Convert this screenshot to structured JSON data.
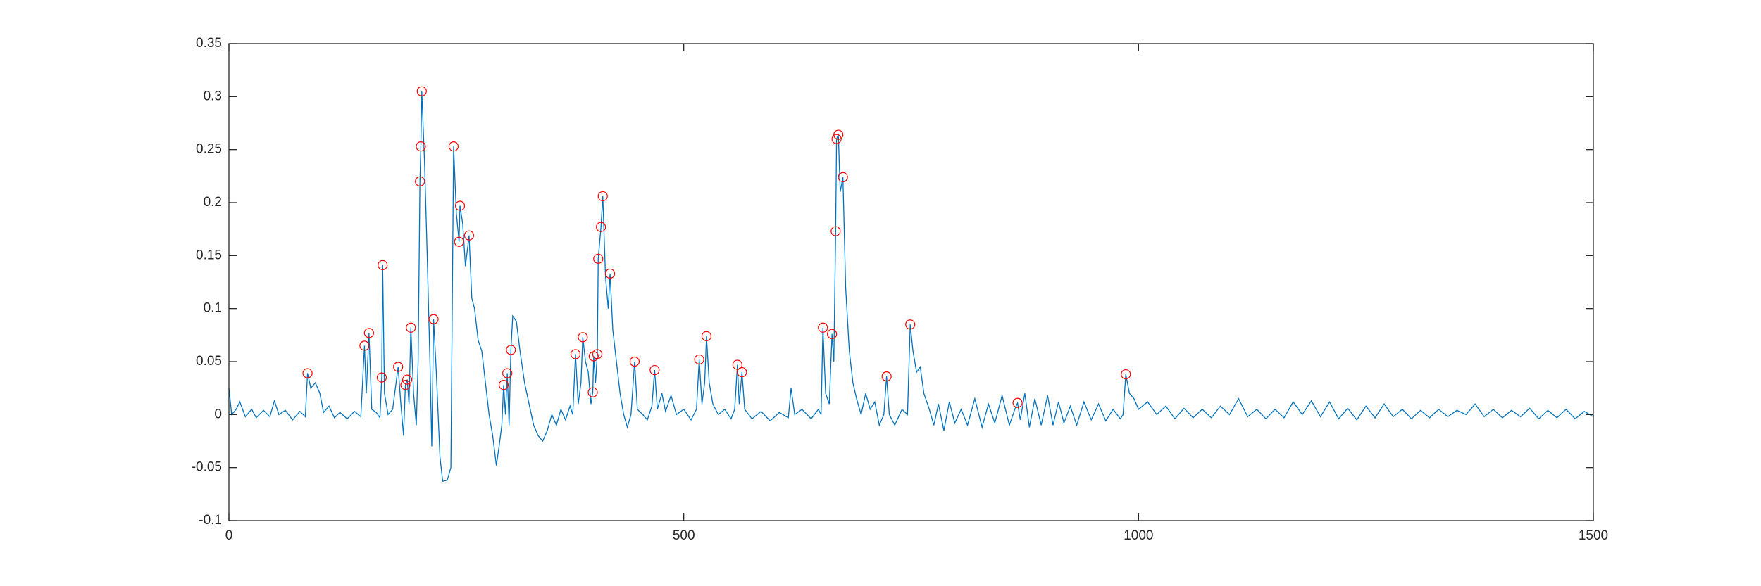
{
  "chart_data": {
    "type": "line",
    "xlim": [
      0,
      1500
    ],
    "xticks": [
      0,
      500,
      1000,
      1500
    ],
    "ylim": [
      -0.1,
      0.35
    ],
    "yticks": [
      -0.1,
      -0.05,
      0,
      0.05,
      0.1,
      0.15,
      0.2,
      0.25,
      0.3,
      0.35
    ],
    "box": true,
    "series": [
      {
        "style": "line",
        "color": "#0072bd",
        "x": [
          0,
          3,
          8,
          12,
          18,
          25,
          30,
          38,
          45,
          50,
          55,
          62,
          70,
          78,
          84,
          86.4,
          90,
          95,
          100,
          104,
          110,
          116,
          122,
          130,
          138,
          145,
          149,
          151,
          154,
          157,
          162,
          166,
          168,
          169,
          171,
          175,
          180,
          186,
          189,
          192,
          194,
          196,
          198,
          200,
          203,
          206,
          208,
          210,
          211,
          212,
          215,
          218,
          221,
          223,
          225,
          228,
          232,
          235,
          240,
          244,
          247,
          250,
          253,
          254,
          257,
          260,
          264,
          267,
          270,
          274,
          278,
          282,
          286,
          290,
          294,
          297,
          300,
          302,
          304,
          306,
          308,
          310,
          312,
          316,
          320,
          325,
          330,
          335,
          340,
          345,
          350,
          355,
          360,
          365,
          370,
          375,
          378,
          381,
          384,
          387,
          389,
          392,
          395,
          398,
          400,
          401,
          403,
          405,
          406,
          409,
          411,
          414,
          417,
          419,
          422,
          426,
          430,
          434,
          438,
          442,
          446,
          449,
          455,
          460,
          465,
          468,
          471,
          476,
          480,
          486,
          492,
          500,
          508,
          514,
          517,
          520,
          523,
          525,
          528,
          532,
          538,
          545,
          552,
          556,
          559,
          561,
          564,
          567,
          575,
          585,
          595,
          605,
          615,
          618,
          622,
          630,
          640,
          648,
          651,
          653,
          656,
          660,
          663,
          665,
          667,
          668,
          670,
          672,
          675,
          678,
          682,
          686,
          690,
          695,
          700,
          705,
          710,
          715,
          720,
          723,
          726,
          732,
          740,
          746,
          749,
          752,
          756,
          760,
          764,
          770,
          775,
          780,
          786,
          792,
          798,
          805,
          812,
          820,
          828,
          835,
          842,
          850,
          858,
          864,
          867,
          870,
          875,
          880,
          886,
          893,
          900,
          906,
          912,
          918,
          925,
          932,
          940,
          948,
          956,
          964,
          972,
          980,
          983,
          986,
          990,
          995,
          1000,
          1010,
          1020,
          1030,
          1040,
          1050,
          1060,
          1070,
          1080,
          1090,
          1100,
          1110,
          1120,
          1130,
          1140,
          1150,
          1160,
          1170,
          1180,
          1190,
          1200,
          1210,
          1220,
          1230,
          1240,
          1250,
          1260,
          1270,
          1280,
          1290,
          1300,
          1310,
          1320,
          1330,
          1340,
          1350,
          1360,
          1370,
          1380,
          1390,
          1400,
          1410,
          1420,
          1430,
          1440,
          1450,
          1460,
          1470,
          1480,
          1490,
          1500
        ],
        "values": [
          0.025,
          0,
          0.005,
          0.012,
          -0.002,
          0.005,
          -0.003,
          0.004,
          -0.002,
          0.013,
          0,
          0.004,
          -0.005,
          0.003,
          -0.002,
          0.039,
          0.025,
          0.03,
          0.02,
          0.002,
          0.008,
          -0.003,
          0.002,
          -0.004,
          0.003,
          -0.002,
          0.065,
          0.02,
          0.077,
          0.005,
          0.002,
          -0.003,
          0.035,
          0.141,
          0.02,
          0,
          0.005,
          0.045,
          0.01,
          -0.02,
          0.028,
          0.033,
          0.01,
          0.082,
          0.02,
          -0.01,
          0.05,
          0.22,
          0.253,
          0.305,
          0.24,
          0.15,
          0.05,
          -0.03,
          0.09,
          0.04,
          -0.04,
          -0.063,
          -0.062,
          -0.05,
          0.253,
          0.19,
          0.163,
          0.197,
          0.18,
          0.14,
          0.169,
          0.11,
          0.1,
          0.07,
          0.06,
          0.03,
          0,
          -0.02,
          -0.048,
          -0.03,
          -0.01,
          0.028,
          0,
          0.039,
          -0.01,
          0.061,
          0.093,
          0.088,
          0.06,
          0.03,
          0.01,
          -0.01,
          -0.02,
          -0.025,
          -0.015,
          0,
          -0.01,
          0.005,
          -0.005,
          0.008,
          0,
          0.057,
          0.01,
          0.03,
          0.073,
          0.05,
          0.04,
          0.01,
          0.021,
          0.055,
          0.03,
          0.057,
          0.147,
          0.177,
          0.206,
          0.13,
          0.1,
          0.133,
          0.08,
          0.05,
          0.02,
          0,
          -0.012,
          0,
          0.05,
          0.005,
          0,
          -0.005,
          0.008,
          0.042,
          0.005,
          0.02,
          0.003,
          0.018,
          0,
          0.005,
          -0.005,
          0.005,
          0.052,
          0.01,
          0.03,
          0.074,
          0.03,
          0.01,
          0,
          0.005,
          -0.004,
          0.005,
          0.047,
          0.01,
          0.04,
          0.005,
          -0.004,
          0.003,
          -0.006,
          0.002,
          -0.003,
          0.025,
          0,
          0.005,
          -0.004,
          0.005,
          0,
          0.082,
          0.02,
          0.01,
          0.076,
          0.05,
          0.173,
          0.26,
          0.264,
          0.21,
          0.224,
          0.12,
          0.06,
          0.03,
          0.015,
          0,
          0.02,
          0.005,
          0.012,
          -0.01,
          0,
          0.036,
          0,
          -0.01,
          0.005,
          0,
          0.085,
          0.06,
          0.04,
          0.045,
          0.02,
          0.005,
          -0.01,
          0.01,
          -0.015,
          0.012,
          -0.008,
          0.005,
          -0.01,
          0.015,
          -0.012,
          0.01,
          -0.008,
          0.018,
          -0.01,
          0.005,
          0.011,
          -0.005,
          0.02,
          -0.012,
          0.015,
          -0.01,
          0.018,
          -0.01,
          0.012,
          -0.008,
          0.008,
          -0.01,
          0.012,
          -0.005,
          0.01,
          -0.006,
          0.005,
          -0.004,
          0,
          0.038,
          0.02,
          0.015,
          0.005,
          0.012,
          0,
          0.008,
          -0.004,
          0.006,
          -0.003,
          0.005,
          -0.003,
          0.008,
          0,
          0.015,
          -0.002,
          0.005,
          -0.004,
          0.005,
          -0.003,
          0.012,
          0,
          0.013,
          -0.002,
          0.012,
          -0.004,
          0.006,
          -0.005,
          0.008,
          -0.003,
          0.01,
          -0.002,
          0.005,
          -0.004,
          0.004,
          -0.003,
          0.005,
          -0.002,
          0.004,
          0,
          0.01,
          -0.002,
          0.005,
          -0.003,
          0.004,
          -0.002,
          0.006,
          -0.004,
          0.004,
          -0.003,
          0.005,
          -0.004,
          0.003,
          -0.002
        ]
      },
      {
        "style": "markers",
        "marker": "circle",
        "color": "#ff0000",
        "x": [
          86.4,
          149,
          154,
          168,
          169,
          186,
          194,
          196,
          200,
          210,
          211,
          212,
          225,
          247,
          253,
          254,
          264,
          302,
          306,
          310,
          381,
          389,
          400,
          401,
          405,
          406,
          409,
          411,
          419,
          446,
          468,
          517,
          525,
          559,
          564,
          653,
          663,
          667,
          668,
          670,
          675,
          723,
          749,
          867,
          986
        ],
        "values": [
          0.039,
          0.065,
          0.077,
          0.035,
          0.141,
          0.045,
          0.028,
          0.033,
          0.082,
          0.22,
          0.253,
          0.305,
          0.09,
          0.253,
          0.163,
          0.197,
          0.169,
          0.028,
          0.039,
          0.061,
          0.057,
          0.073,
          0.021,
          0.055,
          0.057,
          0.147,
          0.177,
          0.206,
          0.133,
          0.05,
          0.042,
          0.052,
          0.074,
          0.047,
          0.04,
          0.082,
          0.076,
          0.173,
          0.26,
          0.264,
          0.224,
          0.036,
          0.085,
          0.011,
          0.038
        ]
      }
    ]
  }
}
